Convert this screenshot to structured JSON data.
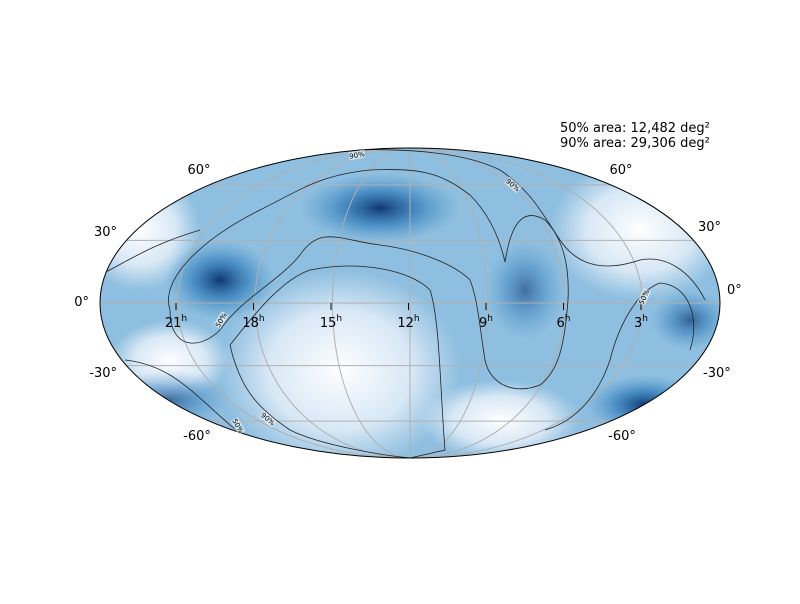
{
  "map": {
    "projection": "mollweide",
    "annotations": [
      "50% area: 12,482 deg²",
      "90% area: 29,306 deg²"
    ],
    "dec_labels_left": [
      "60°",
      "30°",
      "0°",
      "-30°",
      "-60°"
    ],
    "dec_labels_right": [
      "60°",
      "30°",
      "0°",
      "-30°",
      "-60°"
    ],
    "ra_labels": [
      {
        "value": "21",
        "sup": "h"
      },
      {
        "value": "18",
        "sup": "h"
      },
      {
        "value": "15",
        "sup": "h"
      },
      {
        "value": "12",
        "sup": "h"
      },
      {
        "value": "9",
        "sup": "h"
      },
      {
        "value": "6",
        "sup": "h"
      },
      {
        "value": "3",
        "sup": "h"
      }
    ],
    "contour_labels": [
      "90%",
      "90%",
      "50%",
      "90%",
      "50%",
      "50%"
    ]
  }
}
